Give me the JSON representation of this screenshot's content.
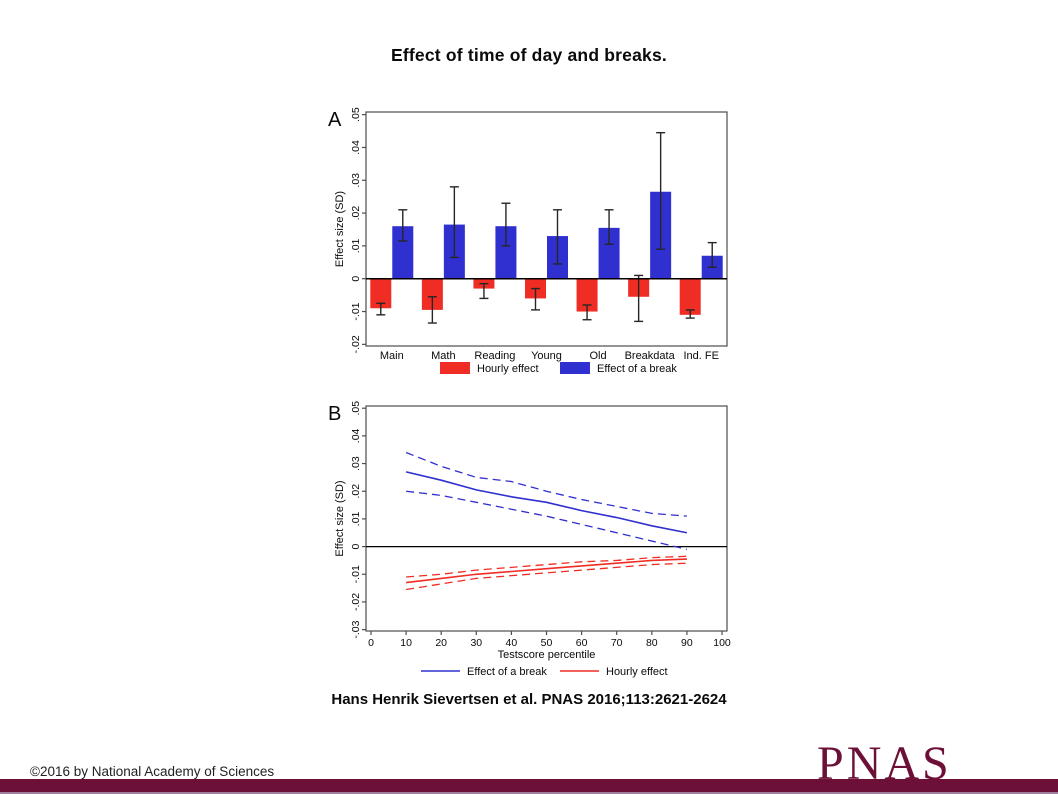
{
  "page": {
    "title": "Effect of time of day and breaks.",
    "attribution": "Hans Henrik Sievertsen et al. PNAS 2016;113:2621-2624",
    "copyright": "©2016 by National Academy of Sciences",
    "logo_text": "PNAS"
  },
  "colors": {
    "red": "#ef2d24",
    "blue": "#2f30cf",
    "maroon": "#6c1037",
    "footer_strip": "#9e7f9d",
    "axis": "#4d4d4d",
    "error_bar": "#262626",
    "zero_line": "#000000",
    "text": "#0a0a0a"
  },
  "chart_data": [
    {
      "type": "bar",
      "panel_label": "A",
      "ylabel": "Effect size (SD)",
      "ylim": [
        -0.02,
        0.05
      ],
      "yticks": [
        -0.02,
        -0.01,
        0,
        0.01,
        0.02,
        0.03,
        0.04,
        0.05
      ],
      "ytick_labels": [
        "-.02",
        "-.01",
        "0",
        ".01",
        ".02",
        ".03",
        ".04",
        ".05"
      ],
      "categories": [
        "Main",
        "Math",
        "Reading",
        "Young",
        "Old",
        "Breakdata",
        "Ind. FE"
      ],
      "grid": false,
      "legend_position": "bottom",
      "series": [
        {
          "name": "Hourly effect",
          "color_key": "red",
          "values": [
            -0.009,
            -0.0095,
            -0.003,
            -0.006,
            -0.01,
            -0.0055,
            -0.011
          ],
          "ci_low": [
            -0.011,
            -0.0135,
            -0.006,
            -0.0095,
            -0.0125,
            -0.013,
            -0.012
          ],
          "ci_high": [
            -0.0075,
            -0.0055,
            -0.0015,
            -0.003,
            -0.008,
            0.001,
            -0.0095
          ]
        },
        {
          "name": "Effect of a break",
          "color_key": "blue",
          "values": [
            0.016,
            0.0165,
            0.016,
            0.013,
            0.0155,
            0.0265,
            0.007
          ],
          "ci_low": [
            0.0115,
            0.0065,
            0.01,
            0.0045,
            0.0105,
            0.009,
            0.0035
          ],
          "ci_high": [
            0.021,
            0.028,
            0.023,
            0.021,
            0.021,
            0.0445,
            0.011
          ]
        }
      ]
    },
    {
      "type": "line",
      "panel_label": "B",
      "xlabel": "Testscore percentile",
      "ylabel": "Effect size (SD)",
      "xlim": [
        0,
        100
      ],
      "ylim": [
        -0.03,
        0.05
      ],
      "xticks": [
        0,
        10,
        20,
        30,
        40,
        50,
        60,
        70,
        80,
        90,
        100
      ],
      "yticks": [
        -0.03,
        -0.02,
        -0.01,
        0,
        0.01,
        0.02,
        0.03,
        0.04,
        0.05
      ],
      "ytick_labels": [
        "-.03",
        "-.02",
        "-.01",
        "0",
        ".01",
        ".02",
        ".03",
        ".04",
        ".05"
      ],
      "grid": false,
      "legend_position": "bottom",
      "x": [
        10,
        20,
        30,
        40,
        50,
        60,
        70,
        80,
        90
      ],
      "series": [
        {
          "name": "Effect of a break",
          "color_key": "blue",
          "style": "solid",
          "in_legend": true,
          "values": [
            0.027,
            0.024,
            0.0205,
            0.018,
            0.016,
            0.013,
            0.0105,
            0.0075,
            0.005
          ]
        },
        {
          "name": "Effect of a break upper CI",
          "color_key": "blue",
          "style": "dashed",
          "in_legend": false,
          "values": [
            0.034,
            0.029,
            0.025,
            0.0235,
            0.02,
            0.017,
            0.0145,
            0.012,
            0.011
          ]
        },
        {
          "name": "Effect of a break lower CI",
          "color_key": "blue",
          "style": "dashed",
          "in_legend": false,
          "values": [
            0.02,
            0.0185,
            0.016,
            0.0135,
            0.011,
            0.008,
            0.005,
            0.002,
            -0.001
          ]
        },
        {
          "name": "Hourly effect",
          "color_key": "red",
          "style": "solid",
          "in_legend": true,
          "values": [
            -0.013,
            -0.0115,
            -0.01,
            -0.009,
            -0.008,
            -0.007,
            -0.006,
            -0.005,
            -0.0045
          ]
        },
        {
          "name": "Hourly effect upper CI",
          "color_key": "red",
          "style": "dashed",
          "in_legend": false,
          "values": [
            -0.011,
            -0.01,
            -0.0085,
            -0.0075,
            -0.0065,
            -0.0055,
            -0.005,
            -0.004,
            -0.0035
          ]
        },
        {
          "name": "Hourly effect lower CI",
          "color_key": "red",
          "style": "dashed",
          "in_legend": false,
          "values": [
            -0.0155,
            -0.0135,
            -0.0115,
            -0.0105,
            -0.0095,
            -0.0085,
            -0.0075,
            -0.0065,
            -0.006
          ]
        }
      ]
    }
  ]
}
